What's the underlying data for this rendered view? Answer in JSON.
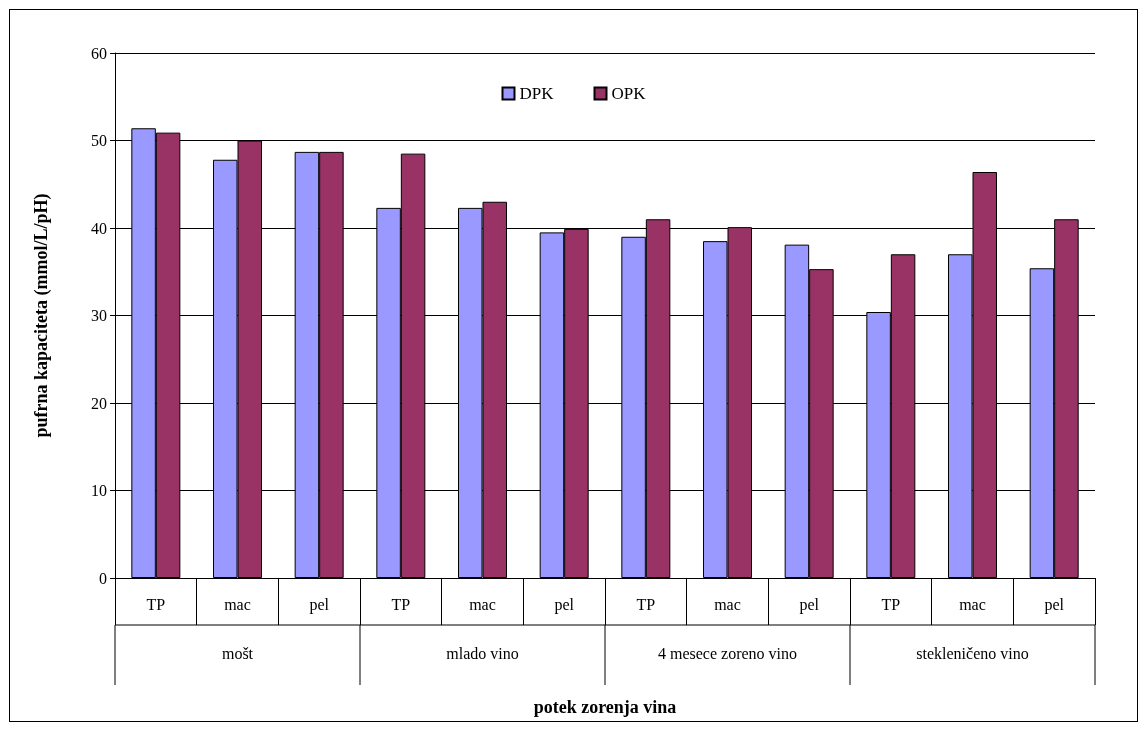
{
  "chart_data": {
    "type": "bar",
    "categories": [
      "TP",
      "mac",
      "pel",
      "TP",
      "mac",
      "pel",
      "TP",
      "mac",
      "pel",
      "TP",
      "mac",
      "pel"
    ],
    "series": [
      {
        "name": "DPK",
        "color": "#9999ff",
        "values": [
          51.4,
          47.8,
          48.7,
          42.3,
          42.3,
          39.5,
          39.0,
          38.5,
          38.1,
          30.4,
          37.0,
          35.4
        ]
      },
      {
        "name": "OPK",
        "color": "#993366",
        "values": [
          50.9,
          50.0,
          48.7,
          48.5,
          43.0,
          39.9,
          41.0,
          40.1,
          35.3,
          37.0,
          46.4,
          41.0
        ]
      }
    ],
    "annotations": [
      "mošt",
      "mlado vino",
      "4 mesece zoreno vino",
      "stekleničeno vino"
    ],
    "xlabel": "potek zorenja vina",
    "ylabel": "pufrna kapaciteta (mmol/L/pH)",
    "ylim": [
      0,
      60
    ],
    "yticks": [
      0,
      10,
      20,
      30,
      40,
      50,
      60
    ],
    "grid": "y",
    "legend": "top"
  }
}
